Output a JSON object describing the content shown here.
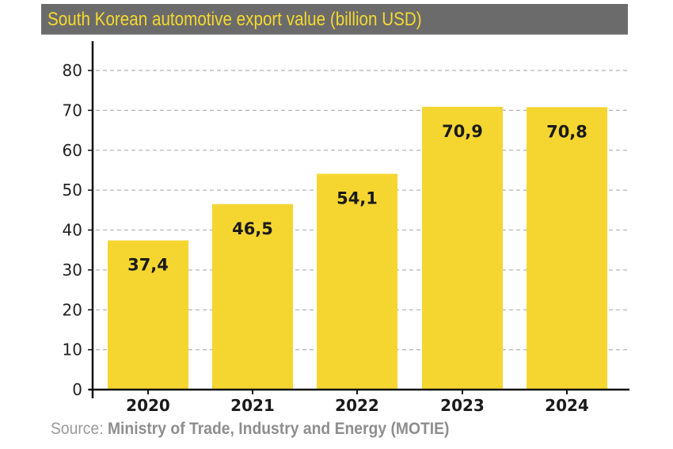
{
  "chart_data": {
    "type": "bar",
    "title": "South Korean automotive export value (billion USD)",
    "categories": [
      "2020",
      "2021",
      "2022",
      "2023",
      "2024"
    ],
    "values": [
      37.4,
      46.5,
      54.1,
      70.9,
      70.8
    ],
    "data_labels": [
      "37,4",
      "46,5",
      "54,1",
      "70,9",
      "70,8"
    ],
    "ylim": [
      0,
      80
    ],
    "yticks": [
      0,
      10,
      20,
      30,
      40,
      50,
      60,
      70,
      80
    ],
    "grid": true,
    "bar_color": "#f5d631",
    "title_color": "#f5d92f",
    "title_bg": "#6b6b6b"
  },
  "source": {
    "label": "Source:",
    "text": "Ministry of Trade, Industry and Energy (MOTIE)"
  }
}
